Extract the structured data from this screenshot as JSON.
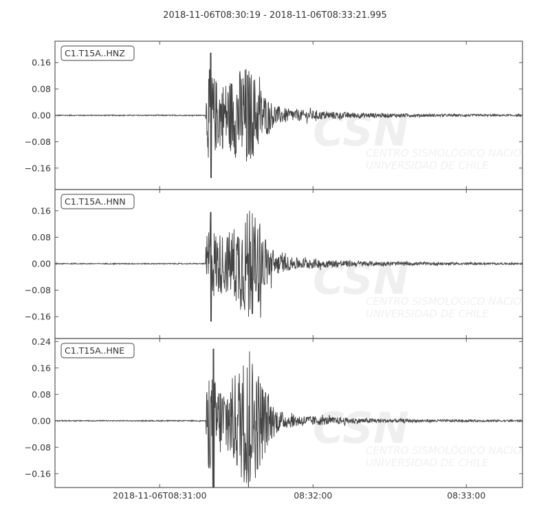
{
  "chart_data": {
    "type": "line",
    "title": "2018-11-06T08:30:19  -  2018-11-06T08:33:21.995",
    "xlabel": "",
    "ylabel": "",
    "x_range": [
      "2018-11-06T08:30:19",
      "2018-11-06T08:33:21.995"
    ],
    "x_ticks": [
      "2018-11-06T08:31:00",
      "08:32:00",
      "08:33:00"
    ],
    "grid": false,
    "line_color": "#444444",
    "watermark": {
      "logo": "CSN",
      "line1": "CENTRO SISMOLÓGICO NACIONAL",
      "line2": "UNIVERSIDAD DE CHILE"
    },
    "series": [
      {
        "name": "C1.T15A..HNZ",
        "ylim": [
          -0.225,
          0.225
        ],
        "y_ticks": [
          "−0.16",
          "−0.08",
          "0.00",
          "0.08",
          "0.16"
        ],
        "onset": "08:31:18",
        "max": 0.19,
        "min": -0.19,
        "peak_time": "08:31:20",
        "second_burst_time": "08:31:34",
        "second_burst_amp": 0.14
      },
      {
        "name": "C1.T15A..HNN",
        "ylim": [
          -0.226,
          0.224
        ],
        "y_ticks": [
          "−0.16",
          "−0.08",
          "0.00",
          "0.08",
          "0.16"
        ],
        "onset": "08:31:18",
        "max": 0.156,
        "min": -0.175,
        "peak_time": "08:31:20",
        "second_burst_time": "08:31:35",
        "second_burst_amp": 0.16
      },
      {
        "name": "C1.T15A..HNE",
        "ylim": [
          -0.202,
          0.249
        ],
        "y_ticks": [
          "−0.16",
          "−0.08",
          "0.00",
          "0.08",
          "0.16",
          "0.24"
        ],
        "onset": "08:31:18",
        "max": 0.218,
        "min": -0.22,
        "peak_time": "08:31:21",
        "second_burst_time": "08:31:35",
        "second_burst_amp": 0.21
      }
    ]
  }
}
